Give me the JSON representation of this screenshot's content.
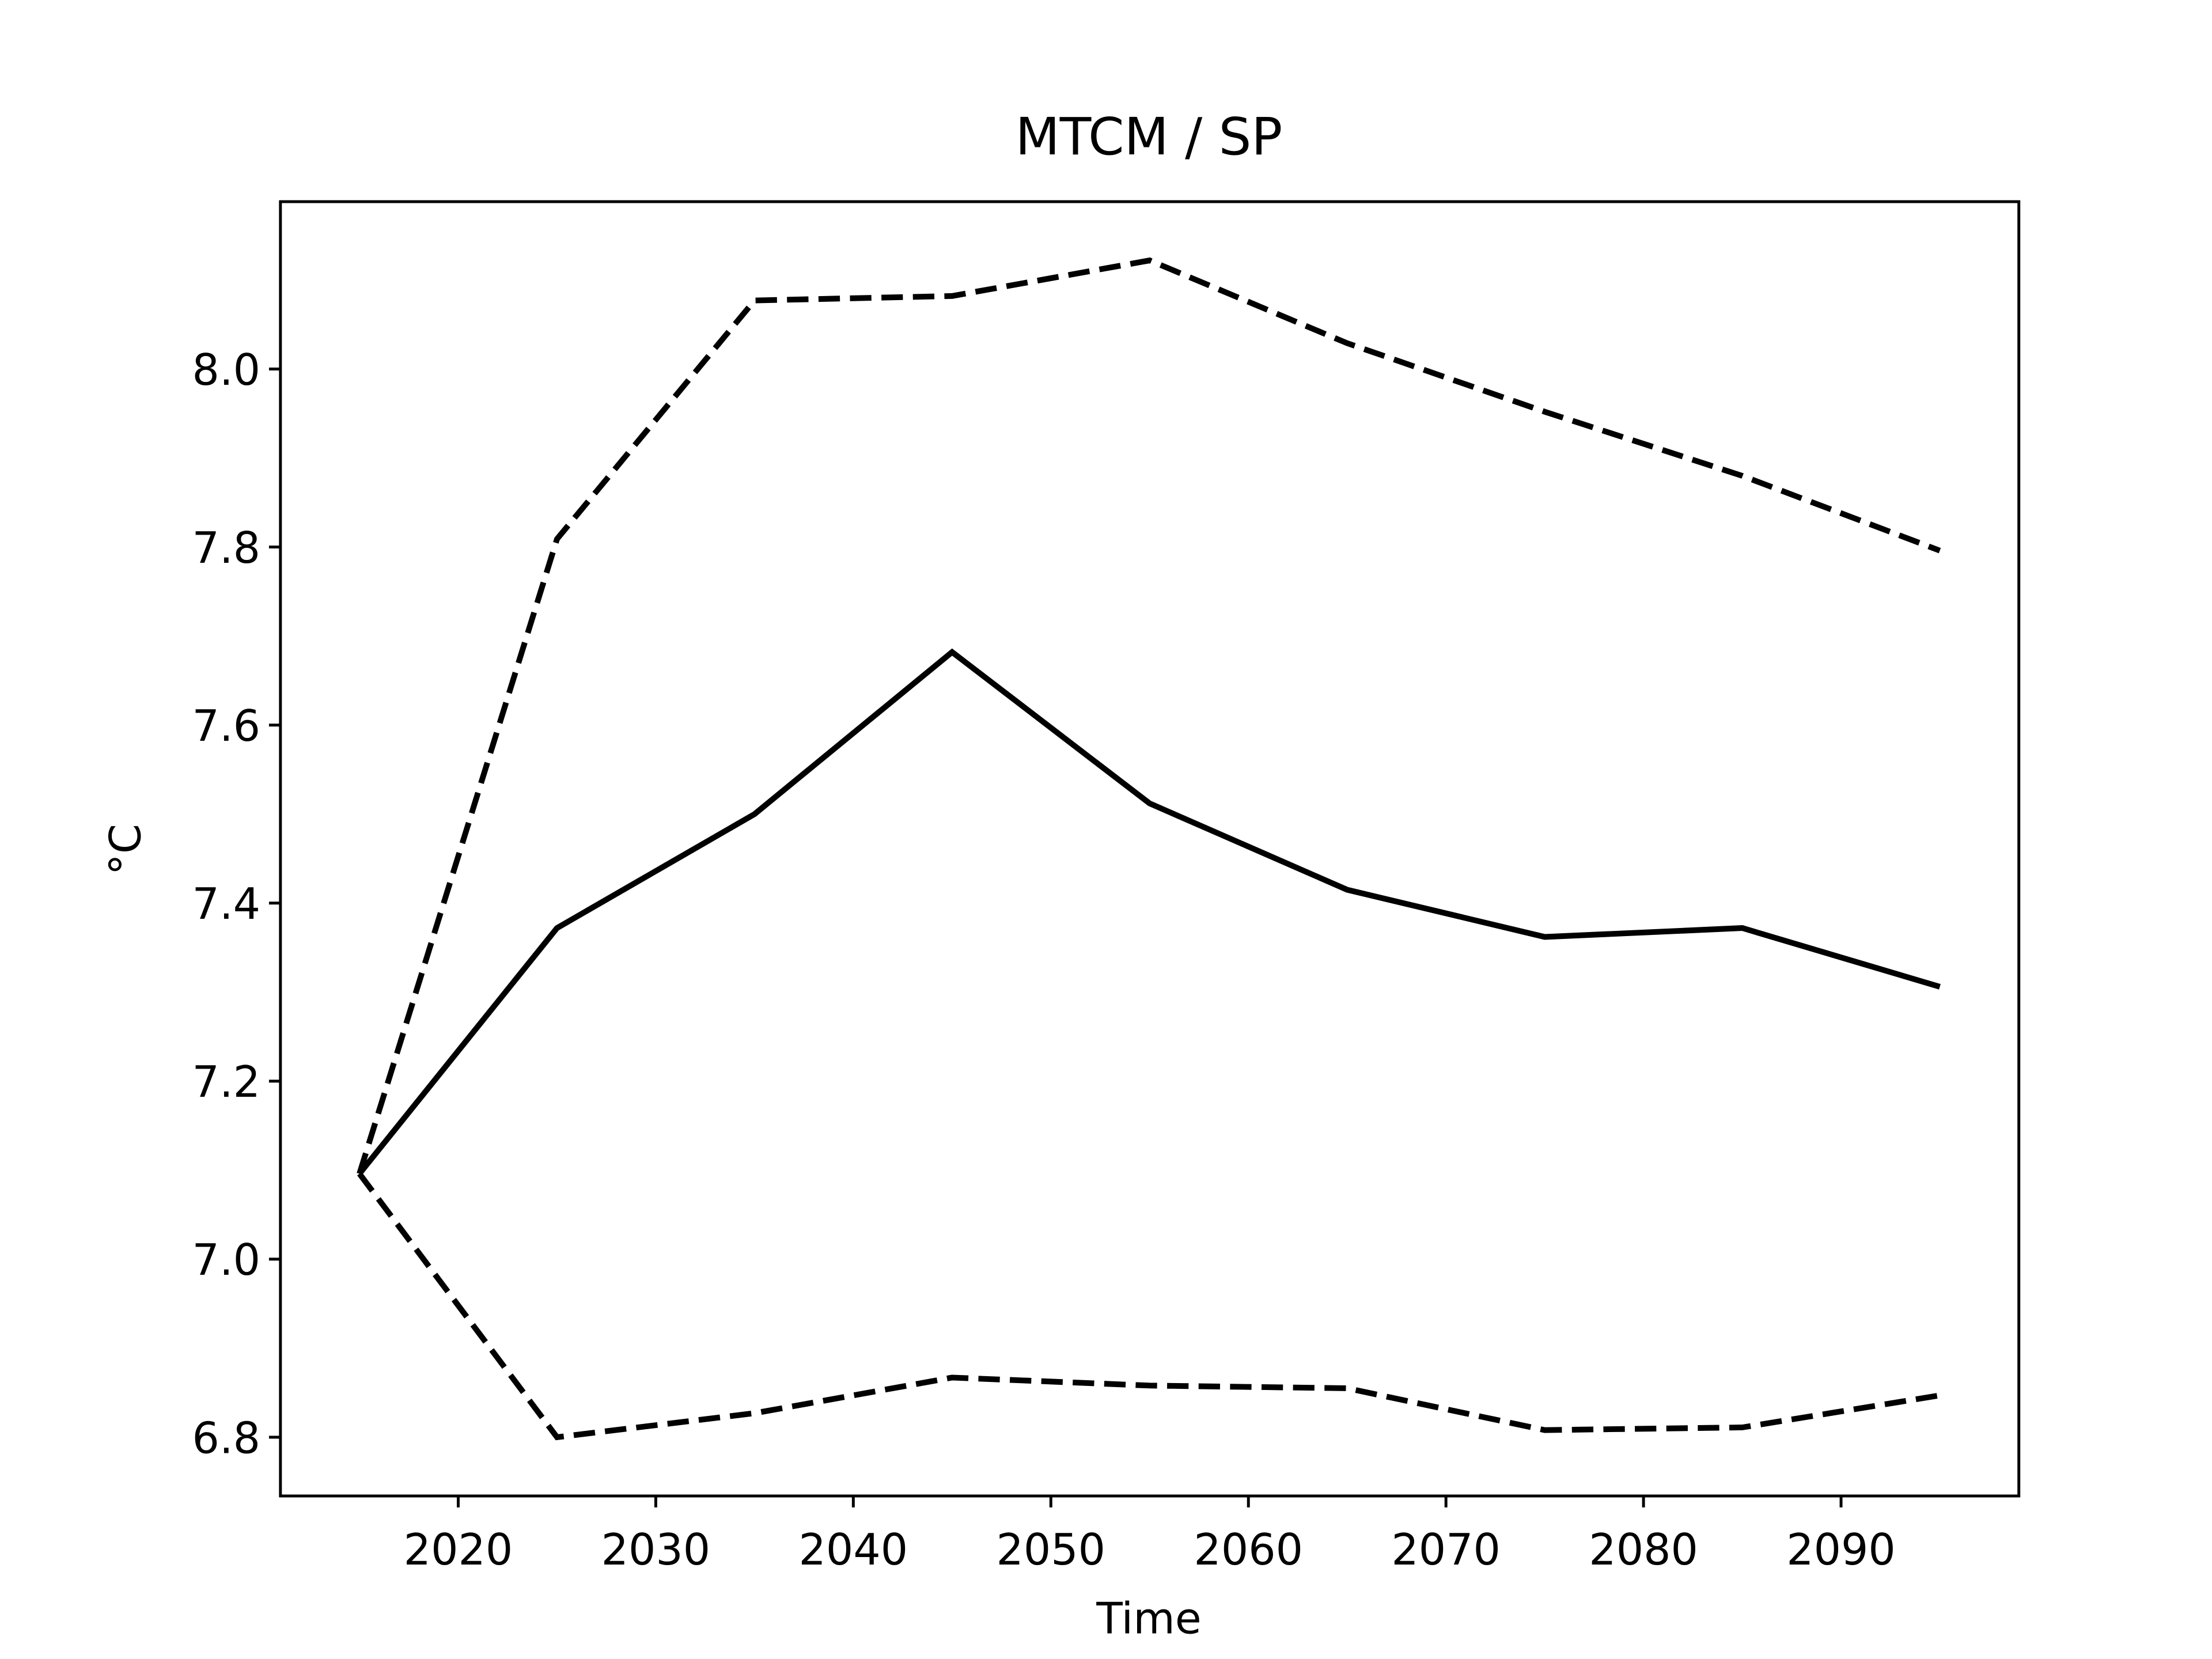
{
  "chart_data": {
    "type": "line",
    "title": "MTCM / SP",
    "xlabel": "Time",
    "ylabel": "°C",
    "x": [
      2015,
      2025,
      2035,
      2045,
      2055,
      2065,
      2075,
      2085,
      2095
    ],
    "series": [
      {
        "color": "#000000",
        "linestyle": "solid",
        "values": [
          7.096,
          7.372,
          7.5,
          7.682,
          7.512,
          7.415,
          7.362,
          7.372,
          7.306
        ]
      },
      {
        "color": "#000000",
        "linestyle": "dashed",
        "values": [
          7.096,
          7.809,
          8.077,
          8.082,
          8.122,
          8.029,
          7.952,
          7.88,
          7.796
        ]
      },
      {
        "color": "#000000",
        "linestyle": "dashed",
        "values": [
          7.096,
          6.8,
          6.827,
          6.867,
          6.858,
          6.855,
          6.808,
          6.811,
          6.847
        ]
      }
    ],
    "xlim": [
      2011,
      2099
    ],
    "xticks": [
      2020,
      2030,
      2040,
      2050,
      2060,
      2070,
      2080,
      2090
    ],
    "ylim": [
      6.734,
      8.188
    ],
    "yticks": [
      {
        "value": 6.8,
        "label": "6.8"
      },
      {
        "value": 7.0,
        "label": "7.0"
      },
      7.2,
      7.4,
      7.6,
      7.8,
      {
        "value": 8.0,
        "label": "8.0"
      }
    ],
    "grid": false
  }
}
